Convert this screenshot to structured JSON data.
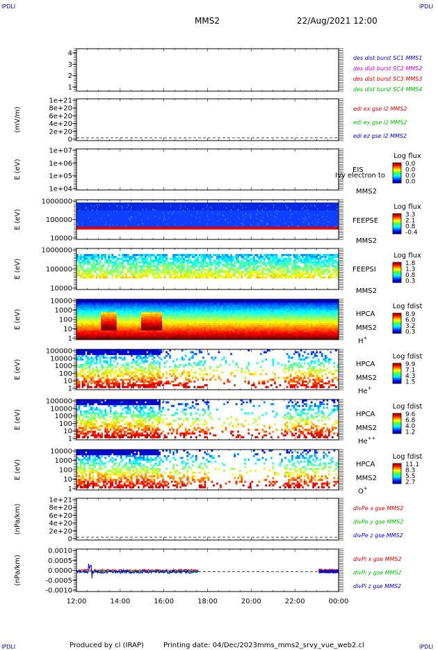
{
  "header": {
    "corner_tl": "IPDLI",
    "corner_tr": "IPDLI",
    "corner_bl": "IPDLI",
    "corner_br": "IPDLI",
    "spacecraft": "MMS2",
    "datetime": "22/Aug/2021 12:00"
  },
  "footer": {
    "produced_by": "Produced by cl (IRAP)",
    "printing_date": "Printing date: 04/Dec/2023",
    "filename": "mms_mms2_srvy_vue_web2.cl"
  },
  "chart_data": {
    "type": "stacked-panels",
    "x_tick_labels": [
      "12:00",
      "14:00",
      "16:00",
      "18:00",
      "20:00",
      "22:00",
      "00:00"
    ],
    "x_range_hours": [
      12,
      24
    ],
    "panels": [
      {
        "id": "p1",
        "kind": "line",
        "ylabel": "",
        "yticks": [
          "4",
          "3",
          "2",
          "1"
        ],
        "legend": [
          {
            "text": "des dist burst SC1 MMS1",
            "color": "#0000cc"
          },
          {
            "text": "des dist burst SC2 MMS2",
            "color": "#cc00cc"
          },
          {
            "text": "des dist burst SC3 MMS3",
            "color": "#dd0000"
          },
          {
            "text": "des dist burst SC4 MMS4",
            "color": "#00bb00"
          }
        ]
      },
      {
        "id": "p2",
        "kind": "line",
        "ylabel": "(mV/m)",
        "yticks": [
          "1e+21",
          "8e+20",
          "6e+20",
          "4e+20",
          "2e+20",
          "0"
        ],
        "legend": [
          {
            "text": "edi ex gse l2 MMS2",
            "color": "#dd0000"
          },
          {
            "text": "edi ey gse l2 MMS2",
            "color": "#00bb00"
          },
          {
            "text": "edi ez gse l2 MMS2",
            "color": "#0000cc"
          }
        ]
      },
      {
        "id": "p3",
        "kind": "spectrogram",
        "ylabel": "E (eV)",
        "yticks": [
          "1e+07",
          "1e+06",
          "1e+05",
          "1e+04"
        ],
        "instrument": "EIS",
        "overlay_text": "Ivy electron to",
        "sc": "MMS2",
        "species": "",
        "cb_title": "Log flux",
        "cb_ticks": [
          "0.0",
          "0.0",
          "0.0",
          "0.0"
        ]
      },
      {
        "id": "p4",
        "kind": "spectrogram",
        "ylabel": "E (eV)",
        "yticks": [
          "1000000",
          "100000",
          "10000"
        ],
        "instrument": "FEEPSE",
        "sc": "MMS2",
        "species": "",
        "cb_title": "Log flux",
        "cb_ticks": [
          "3.3",
          "2.1",
          "0.8",
          "-0.4"
        ]
      },
      {
        "id": "p5",
        "kind": "spectrogram",
        "ylabel": "E (eV)",
        "yticks": [
          "1000000",
          "100000",
          "10000"
        ],
        "instrument": "FEEPSI",
        "sc": "MMS2",
        "species": "",
        "cb_title": "Log flux",
        "cb_ticks": [
          "1.8",
          "1.3",
          "0.8",
          "0.3"
        ]
      },
      {
        "id": "p6",
        "kind": "spectrogram",
        "ylabel": "E (eV)",
        "yticks": [
          "10000",
          "1000",
          "100",
          "10",
          "1"
        ],
        "instrument": "HPCA",
        "sc": "MMS2",
        "species": "H",
        "species_sup": "+",
        "cb_title": "Log fdist",
        "cb_ticks": [
          "8.9",
          "6.0",
          "3.2",
          "0.3"
        ]
      },
      {
        "id": "p7",
        "kind": "spectrogram",
        "ylabel": "E (eV)",
        "yticks": [
          "100000",
          "10000",
          "1000",
          "100",
          "10",
          "1"
        ],
        "instrument": "HPCA",
        "sc": "MMS2",
        "species": "He",
        "species_sup": "+",
        "cb_title": "Log fdist",
        "cb_ticks": [
          "9.9",
          "7.1",
          "4.3",
          "1.5"
        ]
      },
      {
        "id": "p8",
        "kind": "spectrogram",
        "ylabel": "E (eV)",
        "yticks": [
          "100000",
          "10000",
          "1000",
          "100",
          "10",
          "1"
        ],
        "instrument": "HPCA",
        "sc": "MMS2",
        "species": "He",
        "species_sup": "++",
        "cb_title": "Log fdist",
        "cb_ticks": [
          "9.6",
          "6.8",
          "4.0",
          "1.2"
        ]
      },
      {
        "id": "p9",
        "kind": "spectrogram",
        "ylabel": "E (eV)",
        "yticks": [
          "10000",
          "1000",
          "100",
          "10",
          "1"
        ],
        "instrument": "HPCA",
        "sc": "MMS2",
        "species": "O",
        "species_sup": "+",
        "cb_title": "Log fdist",
        "cb_ticks": [
          "11.1",
          "8.3",
          "5.5",
          "2.7"
        ]
      },
      {
        "id": "p10",
        "kind": "line",
        "ylabel": "(nPa/km)",
        "yticks": [
          "1e+21",
          "8e+20",
          "6e+20",
          "4e+20",
          "2e+20",
          "0"
        ],
        "legend": [
          {
            "text": "divPe x gse MMS2",
            "color": "#dd0000"
          },
          {
            "text": "divPe y gse MMS2",
            "color": "#00bb00"
          },
          {
            "text": "divPe z gse MMS2",
            "color": "#0000cc"
          }
        ]
      },
      {
        "id": "p11",
        "kind": "line",
        "ylabel": "(nPa/km)",
        "yticks": [
          "0.0010",
          "0.0005",
          "0.0000",
          "-0.0005",
          "-0.0010"
        ],
        "legend": [
          {
            "text": "divPi x gse MMS2",
            "color": "#dd0000"
          },
          {
            "text": "divPi y gse MMS2",
            "color": "#00bb00"
          },
          {
            "text": "divPi z gse MMS2",
            "color": "#0000cc"
          }
        ]
      }
    ]
  }
}
